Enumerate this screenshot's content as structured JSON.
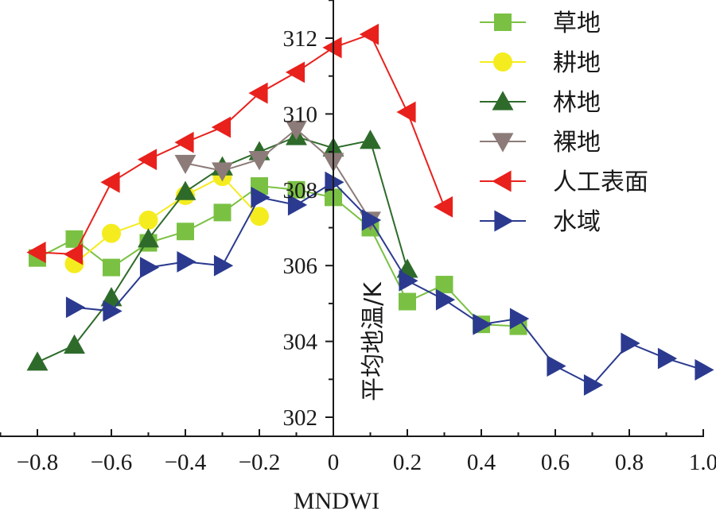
{
  "chart_data": {
    "type": "line",
    "xlabel": "MNDWI",
    "ylabel": "平均地温/K",
    "xlim": [
      -0.9,
      1.0
    ],
    "ylim": [
      302,
      313
    ],
    "grid": false,
    "legend_position": "top-right",
    "x_ticks": [
      "−0.8",
      "−0.6",
      "−0.4",
      "−0.2",
      "0",
      "0.2",
      "0.4",
      "0.6",
      "0.8",
      "1.0"
    ],
    "y_ticks": [
      "302",
      "304",
      "306",
      "308",
      "310",
      "312"
    ],
    "series": [
      {
        "name": "草地",
        "color": "#7ac143",
        "marker": "square",
        "points": [
          [
            -0.8,
            306.2
          ],
          [
            -0.7,
            306.7
          ],
          [
            -0.6,
            305.95
          ],
          [
            -0.5,
            306.6
          ],
          [
            -0.4,
            306.9
          ],
          [
            -0.3,
            307.4
          ],
          [
            -0.2,
            308.1
          ],
          [
            -0.1,
            308.0
          ],
          [
            0.0,
            307.8
          ],
          [
            0.1,
            307.0
          ],
          [
            0.2,
            305.05
          ],
          [
            0.3,
            305.5
          ],
          [
            0.4,
            304.45
          ],
          [
            0.5,
            304.4
          ]
        ]
      },
      {
        "name": "耕地",
        "color": "#f5ec1f",
        "marker": "circle",
        "points": [
          [
            -0.7,
            306.05
          ],
          [
            -0.6,
            306.85
          ],
          [
            -0.5,
            307.2
          ],
          [
            -0.4,
            307.85
          ],
          [
            -0.3,
            308.35
          ],
          [
            -0.2,
            307.3
          ]
        ]
      },
      {
        "name": "林地",
        "color": "#2e6b2b",
        "marker": "triangle-up",
        "points": [
          [
            -0.8,
            303.45
          ],
          [
            -0.7,
            303.9
          ],
          [
            -0.6,
            305.15
          ],
          [
            -0.5,
            306.7
          ],
          [
            -0.4,
            307.95
          ],
          [
            -0.3,
            308.6
          ],
          [
            -0.2,
            309.0
          ],
          [
            -0.1,
            309.4
          ],
          [
            0.0,
            309.1
          ],
          [
            0.1,
            309.3
          ],
          [
            0.2,
            305.9
          ]
        ]
      },
      {
        "name": "裸地",
        "color": "#8c7b78",
        "marker": "triangle-down",
        "points": [
          [
            -0.4,
            308.7
          ],
          [
            -0.3,
            308.5
          ],
          [
            -0.2,
            308.8
          ],
          [
            -0.1,
            309.6
          ],
          [
            0.0,
            308.75
          ],
          [
            0.1,
            307.2
          ]
        ]
      },
      {
        "name": "人工表面",
        "color": "#e8211c",
        "marker": "triangle-left",
        "points": [
          [
            -0.8,
            306.35
          ],
          [
            -0.7,
            306.3
          ],
          [
            -0.6,
            308.2
          ],
          [
            -0.5,
            308.8
          ],
          [
            -0.4,
            309.25
          ],
          [
            -0.3,
            309.65
          ],
          [
            -0.2,
            310.55
          ],
          [
            -0.1,
            311.1
          ],
          [
            0.0,
            311.75
          ],
          [
            0.1,
            312.1
          ],
          [
            0.2,
            310.05
          ],
          [
            0.3,
            307.55
          ]
        ]
      },
      {
        "name": "水域",
        "color": "#2b3a8f",
        "marker": "triangle-right",
        "points": [
          [
            -0.7,
            304.9
          ],
          [
            -0.6,
            304.8
          ],
          [
            -0.5,
            305.95
          ],
          [
            -0.4,
            306.1
          ],
          [
            -0.3,
            306.0
          ],
          [
            -0.2,
            307.8
          ],
          [
            -0.1,
            307.6
          ],
          [
            0.0,
            308.2
          ],
          [
            0.1,
            307.2
          ],
          [
            0.2,
            305.6
          ],
          [
            0.3,
            305.1
          ],
          [
            0.4,
            304.45
          ],
          [
            0.5,
            304.6
          ],
          [
            0.6,
            303.35
          ],
          [
            0.7,
            302.85
          ],
          [
            0.8,
            303.95
          ],
          [
            0.9,
            303.55
          ],
          [
            1.0,
            303.25
          ]
        ]
      }
    ]
  }
}
